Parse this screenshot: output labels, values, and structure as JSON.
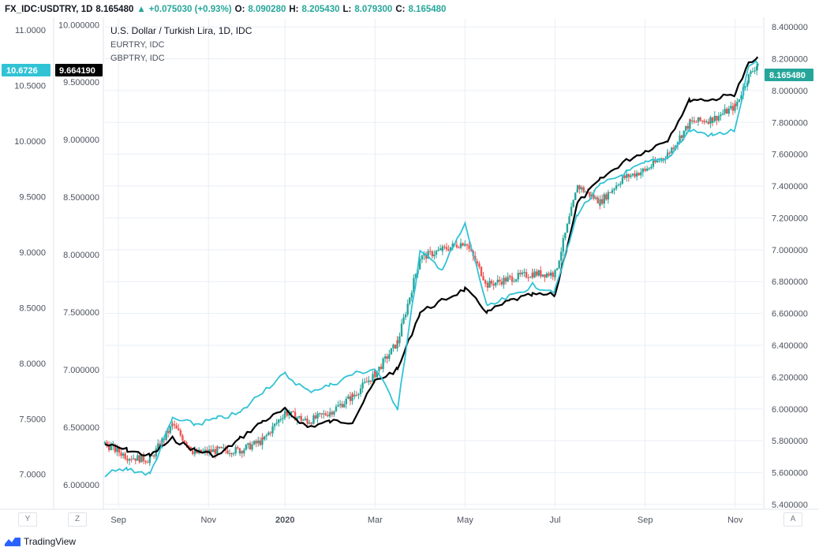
{
  "header": {
    "symbol": "FX_IDC:USDTRY, 1D",
    "last": "8.165480",
    "arrow": "▲",
    "change": "+0.075030 (+0.93%)",
    "o_label": "O:",
    "o_val": "8.090280",
    "h_label": "H:",
    "h_val": "8.205430",
    "l_label": "L:",
    "l_val": "8.079300",
    "c_label": "C:",
    "c_val": "8.165480"
  },
  "legend": [
    "U.S. Dollar / Turkish Lira, 1D, IDC",
    "EURTRY, IDC",
    "GBPTRY, IDC"
  ],
  "badges": {
    "left_outer": "10.6726",
    "left_inner": "9.664190",
    "right": "8.165480"
  },
  "bottom_buttons": {
    "y": "Y",
    "z": "Z",
    "a": "A"
  },
  "footer": {
    "brand": "TradingView"
  },
  "colors": {
    "up": "#26a69a",
    "down": "#ef5350",
    "eurtry": "#000000",
    "gbptry": "#31c3d5",
    "grid": "#e9eef5",
    "badge_dark": "#000000",
    "badge_cyan": "#31c3d5",
    "badge_green": "#26a69a"
  },
  "chart_data": {
    "type": "line",
    "title": "U.S. Dollar / Turkish Lira, 1D, IDC",
    "x_ticks": [
      "Sep",
      "Nov",
      "2020",
      "Mar",
      "May",
      "Jul",
      "Sep",
      "Nov"
    ],
    "x_tick_months": [
      0.3,
      2.3,
      4.0,
      6.0,
      8.0,
      10.0,
      12.0,
      14.0
    ],
    "x_range_months": [
      0,
      14.6
    ],
    "axes": {
      "left_outer": {
        "series": "GBPTRY",
        "ticks": [
          "11.0000",
          "10.5000",
          "10.0000",
          "9.5000",
          "9.0000",
          "8.5000",
          "8.0000",
          "7.5000",
          "7.0000"
        ],
        "range": [
          6.7,
          11.1
        ]
      },
      "left_inner": {
        "series": "EURTRY",
        "ticks": [
          "10.000000",
          "9.500000",
          "9.000000",
          "8.500000",
          "8.000000",
          "7.500000",
          "7.000000",
          "6.500000",
          "6.000000"
        ],
        "range": [
          5.8,
          10.05
        ]
      },
      "right": {
        "series": "USDTRY",
        "ticks": [
          "8.400000",
          "8.200000",
          "8.000000",
          "7.800000",
          "7.600000",
          "7.400000",
          "7.200000",
          "7.000000",
          "6.800000",
          "6.600000",
          "6.400000",
          "6.200000",
          "6.000000",
          "5.800000",
          "5.600000",
          "5.400000"
        ],
        "range": [
          5.38,
          8.45
        ]
      }
    },
    "series": [
      {
        "name": "USDTRY",
        "kind": "candlestick",
        "x": [
          0.0,
          0.5,
          1.0,
          1.5,
          2.0,
          2.5,
          3.0,
          3.5,
          4.0,
          4.5,
          5.0,
          5.5,
          6.0,
          6.5,
          7.0,
          7.5,
          8.0,
          8.5,
          9.0,
          9.5,
          10.0,
          10.5,
          11.0,
          11.5,
          12.0,
          12.5,
          13.0,
          13.5,
          14.0,
          14.3,
          14.5
        ],
        "values": [
          5.78,
          5.7,
          5.68,
          5.9,
          5.72,
          5.74,
          5.74,
          5.8,
          5.98,
          5.92,
          5.98,
          6.08,
          6.22,
          6.42,
          6.95,
          7.0,
          7.05,
          6.78,
          6.82,
          6.85,
          6.85,
          7.4,
          7.3,
          7.45,
          7.5,
          7.6,
          7.8,
          7.82,
          7.9,
          8.09,
          8.17
        ]
      },
      {
        "name": "EURTRY",
        "kind": "line",
        "x": [
          0.0,
          0.5,
          1.0,
          1.5,
          2.0,
          2.5,
          3.0,
          3.5,
          4.0,
          4.5,
          5.0,
          5.5,
          6.0,
          6.5,
          7.0,
          7.5,
          8.0,
          8.5,
          9.0,
          9.5,
          10.0,
          10.5,
          11.0,
          11.5,
          12.0,
          12.5,
          13.0,
          13.5,
          14.0,
          14.3,
          14.5
        ],
        "values": [
          6.35,
          6.3,
          6.25,
          6.4,
          6.3,
          6.25,
          6.4,
          6.55,
          6.65,
          6.5,
          6.55,
          6.55,
          6.9,
          7.0,
          7.5,
          7.6,
          7.7,
          7.5,
          7.6,
          7.65,
          7.65,
          8.45,
          8.65,
          8.8,
          8.9,
          9.0,
          9.35,
          9.35,
          9.4,
          9.66,
          9.7
        ]
      },
      {
        "name": "GBPTRY",
        "kind": "line",
        "x": [
          0.0,
          0.5,
          1.0,
          1.5,
          2.0,
          2.5,
          3.0,
          3.5,
          4.0,
          4.5,
          5.0,
          5.5,
          6.0,
          6.5,
          7.0,
          7.5,
          8.0,
          8.5,
          9.0,
          9.5,
          10.0,
          10.5,
          11.0,
          11.5,
          12.0,
          12.5,
          13.0,
          13.5,
          14.0,
          14.3,
          14.5
        ],
        "values": [
          7.0,
          7.05,
          7.0,
          7.5,
          7.45,
          7.5,
          7.55,
          7.75,
          7.9,
          7.75,
          7.8,
          7.9,
          7.95,
          7.6,
          9.0,
          8.85,
          9.25,
          8.5,
          8.6,
          8.7,
          8.65,
          9.35,
          9.6,
          9.7,
          9.8,
          9.85,
          10.1,
          10.05,
          10.1,
          10.67,
          10.7
        ]
      }
    ],
    "grid": true,
    "legend_position": "top-left"
  }
}
